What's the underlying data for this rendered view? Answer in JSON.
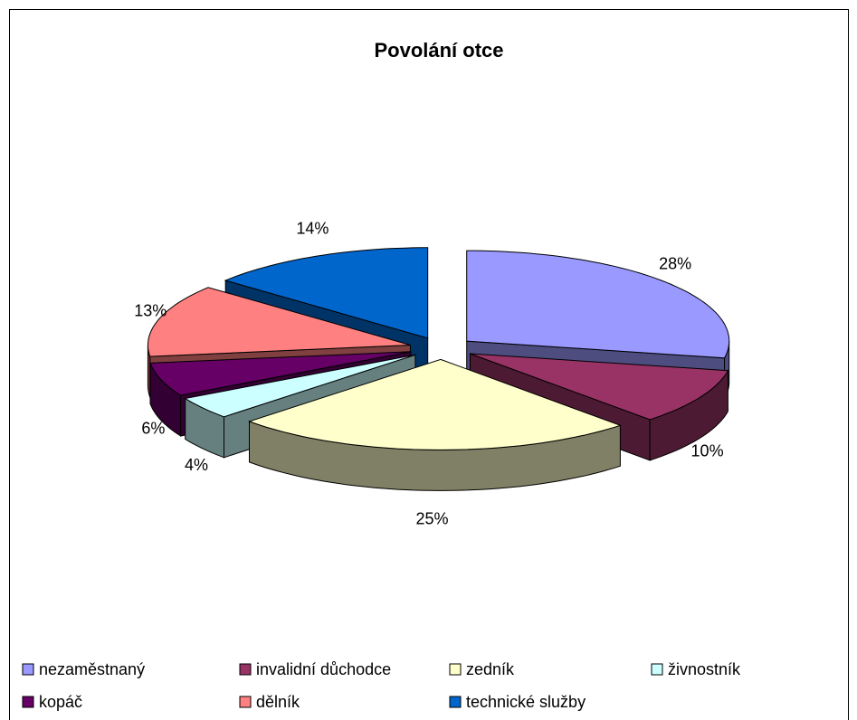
{
  "chart_data": {
    "type": "pie3d",
    "title": "Povolání otce",
    "categories": [
      "nezaměstnaný",
      "invalidní důchodce",
      "zedník",
      "živnostník",
      "kopáč",
      "dělník",
      "technické služby"
    ],
    "values": [
      28,
      10,
      25,
      4,
      6,
      13,
      14
    ],
    "value_labels": [
      "28%",
      "10%",
      "25%",
      "4%",
      "6%",
      "13%",
      "14%"
    ],
    "colors": [
      "#9999ff",
      "#993366",
      "#ffffcc",
      "#ccffff",
      "#660066",
      "#ff8080",
      "#0066cc"
    ],
    "legend": "bottom"
  }
}
